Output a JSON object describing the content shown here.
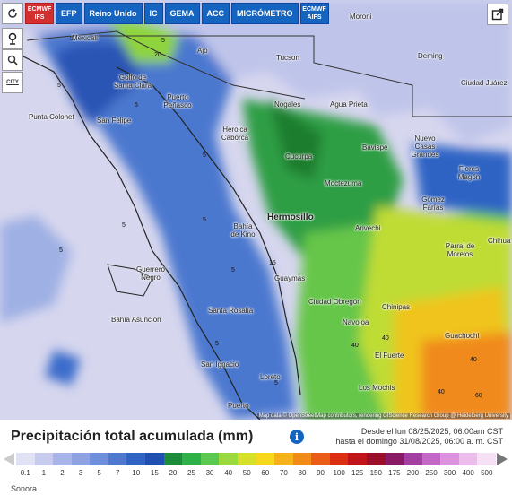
{
  "tabs": [
    {
      "label": "ECMWF IFS",
      "selected": true
    },
    {
      "label": "EFP",
      "selected": false
    },
    {
      "label": "Reino Unido",
      "selected": false
    },
    {
      "label": "IC",
      "selected": false
    },
    {
      "label": "GEMA",
      "selected": false
    },
    {
      "label": "ACC",
      "selected": false
    },
    {
      "label": "MICRÓMETRO",
      "selected": false
    },
    {
      "label": "ECMWF AIFS",
      "selected": false
    }
  ],
  "controls": {
    "refresh_icon": "refresh-icon",
    "pin_icon": "location-pin-icon",
    "zoom_icon": "zoom-icon",
    "city_label": "CITY",
    "share_icon": "share-icon"
  },
  "cities": [
    {
      "name": "Mexicali"
    },
    {
      "name": "Ajo"
    },
    {
      "name": "Tucson"
    },
    {
      "name": "Moroni"
    },
    {
      "name": "Deming"
    },
    {
      "name": "Ciudad Juárez"
    },
    {
      "name": "Golfo de Santa Clara"
    },
    {
      "name": "Puerto Peñasco"
    },
    {
      "name": "Punta Colonet"
    },
    {
      "name": "San Felipe"
    },
    {
      "name": "Nogales"
    },
    {
      "name": "Agua Prieta"
    },
    {
      "name": "Heroica Caborca"
    },
    {
      "name": "Cucurpa"
    },
    {
      "name": "Bavispe"
    },
    {
      "name": "Nuevo Casas Grandes"
    },
    {
      "name": "Moctezuma"
    },
    {
      "name": "Flores Magón"
    },
    {
      "name": "Gómez Farías"
    },
    {
      "name": "Hermosillo"
    },
    {
      "name": "Bahía de Kino"
    },
    {
      "name": "Arivechi"
    },
    {
      "name": "Parral de Morelos"
    },
    {
      "name": "Chihua"
    },
    {
      "name": "Guerrero Negro"
    },
    {
      "name": "Guaymas"
    },
    {
      "name": "Ciudad Obregón"
    },
    {
      "name": "Chinipas"
    },
    {
      "name": "Bahía Asunción"
    },
    {
      "name": "Santa Rosalía"
    },
    {
      "name": "Navojoa"
    },
    {
      "name": "Guachochi"
    },
    {
      "name": "San Ignacio"
    },
    {
      "name": "El Fuerte"
    },
    {
      "name": "Loreto"
    },
    {
      "name": "Los Mochis"
    },
    {
      "name": "Puerto"
    }
  ],
  "contour_labels": [
    "5",
    "5",
    "5",
    "5",
    "5",
    "5",
    "5",
    "5",
    "5",
    "5",
    "20",
    "40",
    "40",
    "40",
    "60",
    "40",
    "15",
    "5"
  ],
  "attribution": "Map data © OpenStreetMap contributors, rendering GIScience Research Group @ Heidelberg University",
  "legend": {
    "title": "Precipitación total acumulada (mm)",
    "info_icon": "info-icon",
    "date_from": "Desde el lun 08/25/2025, 06:00am CST",
    "date_to": "hasta el domingo 31/08/2025, 06:00 a. m. CST",
    "values": [
      "0.1",
      "1",
      "2",
      "3",
      "5",
      "7",
      "10",
      "15",
      "20",
      "25",
      "30",
      "40",
      "50",
      "60",
      "70",
      "80",
      "90",
      "100",
      "125",
      "150",
      "175",
      "200",
      "250",
      "300",
      "400",
      "500"
    ],
    "colors": [
      "#e1e1f5",
      "#c7cbee",
      "#a9b5e8",
      "#8fa3e2",
      "#6f8edb",
      "#4f79d1",
      "#2f63c4",
      "#1f4fb0",
      "#1b8c3a",
      "#2fb14a",
      "#59c94f",
      "#9bd93c",
      "#d6e02a",
      "#f5d81c",
      "#f7b11a",
      "#f38b18",
      "#ea5d16",
      "#db2f14",
      "#c0141a",
      "#9c0e2a",
      "#8b1a64",
      "#a23fa1",
      "#c567c6",
      "#dd92dd",
      "#ecbdec",
      "#f6e0f6"
    ],
    "region": "Sonora"
  }
}
